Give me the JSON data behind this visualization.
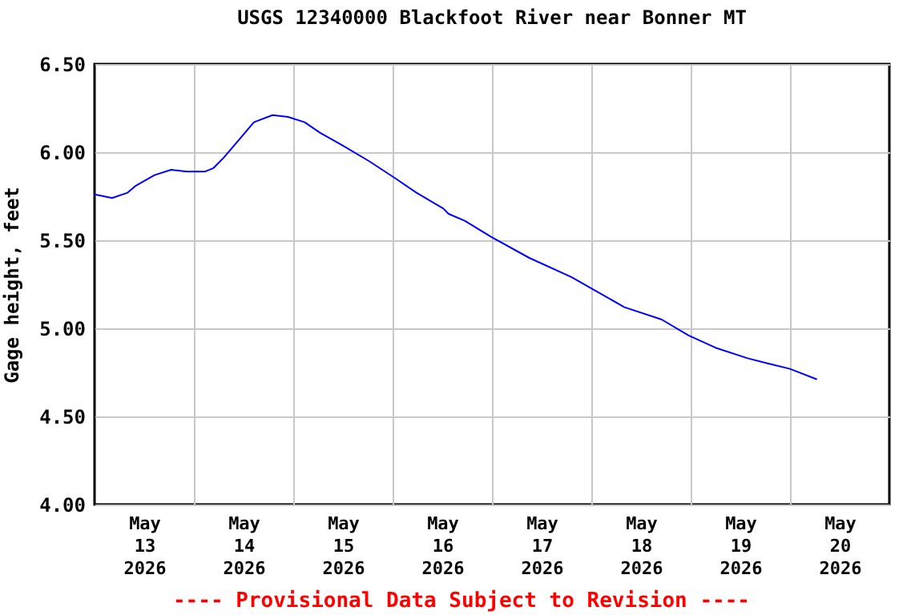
{
  "chart_data": {
    "type": "line",
    "title": "USGS 12340000 Blackfoot River near Bonner MT",
    "ylabel": "Gage height, feet",
    "annotations": [
      "---- Provisional Data Subject to Revision ----"
    ],
    "x": [
      "2026-05-13T00:00",
      "2026-05-13T04:15",
      "2026-05-13T08:00",
      "2026-05-13T10:00",
      "2026-05-13T14:30",
      "2026-05-13T18:30",
      "2026-05-13T22:15",
      "2026-05-14T02:45",
      "2026-05-14T04:45",
      "2026-05-14T07:15",
      "2026-05-14T11:15",
      "2026-05-14T14:30",
      "2026-05-14T19:00",
      "2026-05-14T22:45",
      "2026-05-15T02:45",
      "2026-05-15T06:30",
      "2026-05-15T11:45",
      "2026-05-15T18:15",
      "2026-05-16T00:45",
      "2026-05-16T05:45",
      "2026-05-16T12:15",
      "2026-05-16T13:30",
      "2026-05-16T17:30",
      "2026-05-16T23:45",
      "2026-05-17T09:00",
      "2026-05-17T19:15",
      "2026-05-17T23:45",
      "2026-05-18T08:00",
      "2026-05-18T17:00",
      "2026-05-18T23:30",
      "2026-05-19T06:00",
      "2026-05-19T13:45",
      "2026-05-19T18:45",
      "2026-05-20T00:00",
      "2026-05-20T06:30"
    ],
    "series": [
      {
        "color": "#0000ff",
        "values": [
          5.76,
          5.74,
          5.77,
          5.81,
          5.87,
          5.9,
          5.89,
          5.89,
          5.91,
          5.97,
          6.08,
          6.17,
          6.21,
          6.2,
          6.17,
          6.11,
          6.04,
          5.95,
          5.85,
          5.77,
          5.68,
          5.65,
          5.61,
          5.52,
          5.4,
          5.29,
          5.23,
          5.12,
          5.05,
          4.96,
          4.89,
          4.83,
          4.8,
          4.77,
          4.71
        ]
      }
    ],
    "xlim": [
      "2026-05-13T00:00",
      "2026-05-21T00:00"
    ],
    "xticks": [
      {
        "value": "2026-05-13T12:00",
        "label": "May\n13\n2026"
      },
      {
        "value": "2026-05-14T00:00",
        "label": null
      },
      {
        "value": "2026-05-14T12:00",
        "label": "May\n14\n2026"
      },
      {
        "value": "2026-05-15T00:00",
        "label": null
      },
      {
        "value": "2026-05-15T12:00",
        "label": "May\n15\n2026"
      },
      {
        "value": "2026-05-16T00:00",
        "label": null
      },
      {
        "value": "2026-05-16T12:00",
        "label": "May\n16\n2026"
      },
      {
        "value": "2026-05-17T00:00",
        "label": null
      },
      {
        "value": "2026-05-17T12:00",
        "label": "May\n17\n2026"
      },
      {
        "value": "2026-05-18T00:00",
        "label": null
      },
      {
        "value": "2026-05-18T12:00",
        "label": "May\n18\n2026"
      },
      {
        "value": "2026-05-19T00:00",
        "label": null
      },
      {
        "value": "2026-05-19T12:00",
        "label": "May\n19\n2026"
      },
      {
        "value": "2026-05-20T00:00",
        "label": null
      },
      {
        "value": "2026-05-20T12:00",
        "label": "May\n20\n2026"
      }
    ],
    "ylim": [
      4.0,
      6.5
    ],
    "yticks": [
      {
        "value": 4.0,
        "label": "4.00"
      },
      {
        "value": 4.5,
        "label": "4.50"
      },
      {
        "value": 5.0,
        "label": "5.00"
      },
      {
        "value": 5.5,
        "label": "5.50"
      },
      {
        "value": 6.0,
        "label": "6.00"
      },
      {
        "value": 6.5,
        "label": "6.50"
      }
    ],
    "grid": true
  }
}
